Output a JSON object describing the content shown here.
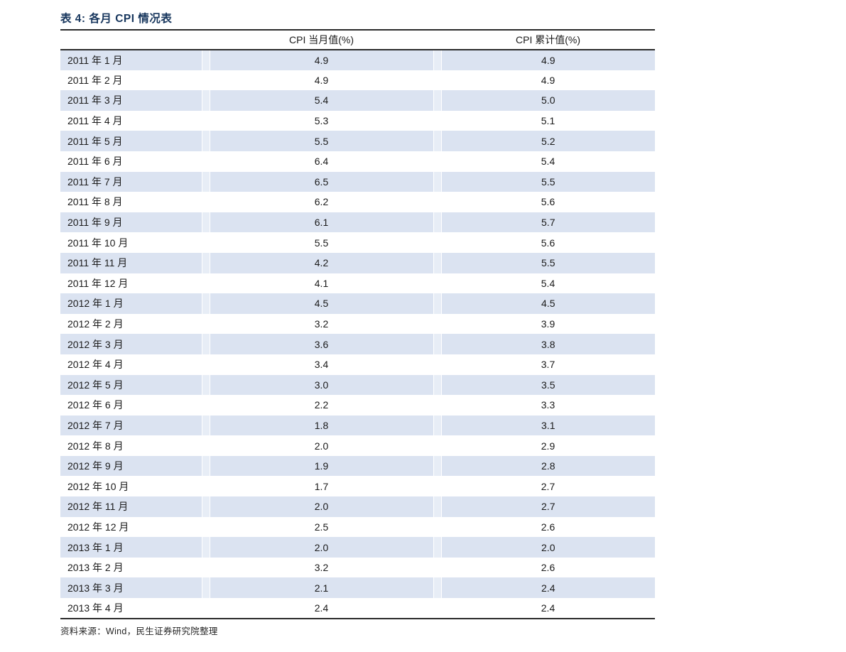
{
  "title": "表 4: 各月 CPI 情况表",
  "table": {
    "columns": {
      "month": "",
      "current": "CPI 当月值(%)",
      "cumulative": "CPI 累计值(%)"
    },
    "rows": [
      {
        "month": "2011 年 1 月",
        "current": "4.9",
        "cumulative": "4.9"
      },
      {
        "month": "2011 年 2 月",
        "current": "4.9",
        "cumulative": "4.9"
      },
      {
        "month": "2011 年 3 月",
        "current": "5.4",
        "cumulative": "5.0"
      },
      {
        "month": "2011 年 4 月",
        "current": "5.3",
        "cumulative": "5.1"
      },
      {
        "month": "2011 年 5 月",
        "current": "5.5",
        "cumulative": "5.2"
      },
      {
        "month": "2011 年 6 月",
        "current": "6.4",
        "cumulative": "5.4"
      },
      {
        "month": "2011 年 7 月",
        "current": "6.5",
        "cumulative": "5.5"
      },
      {
        "month": "2011 年 8 月",
        "current": "6.2",
        "cumulative": "5.6"
      },
      {
        "month": "2011 年 9 月",
        "current": "6.1",
        "cumulative": "5.7"
      },
      {
        "month": "2011 年 10 月",
        "current": "5.5",
        "cumulative": "5.6"
      },
      {
        "month": "2011 年 11 月",
        "current": "4.2",
        "cumulative": "5.5"
      },
      {
        "month": "2011 年 12 月",
        "current": "4.1",
        "cumulative": "5.4"
      },
      {
        "month": "2012 年 1 月",
        "current": "4.5",
        "cumulative": "4.5"
      },
      {
        "month": "2012 年 2 月",
        "current": "3.2",
        "cumulative": "3.9"
      },
      {
        "month": "2012 年 3 月",
        "current": "3.6",
        "cumulative": "3.8"
      },
      {
        "month": "2012 年 4 月",
        "current": "3.4",
        "cumulative": "3.7"
      },
      {
        "month": "2012 年 5 月",
        "current": "3.0",
        "cumulative": "3.5"
      },
      {
        "month": "2012 年 6 月",
        "current": "2.2",
        "cumulative": "3.3"
      },
      {
        "month": "2012 年 7 月",
        "current": "1.8",
        "cumulative": "3.1"
      },
      {
        "month": "2012 年 8 月",
        "current": "2.0",
        "cumulative": "2.9"
      },
      {
        "month": "2012 年 9 月",
        "current": "1.9",
        "cumulative": "2.8"
      },
      {
        "month": "2012 年 10 月",
        "current": "1.7",
        "cumulative": "2.7"
      },
      {
        "month": "2012 年 11 月",
        "current": "2.0",
        "cumulative": "2.7"
      },
      {
        "month": "2012 年 12 月",
        "current": "2.5",
        "cumulative": "2.6"
      },
      {
        "month": "2013 年 1 月",
        "current": "2.0",
        "cumulative": "2.0"
      },
      {
        "month": "2013 年 2 月",
        "current": "3.2",
        "cumulative": "2.6"
      },
      {
        "month": "2013 年 3 月",
        "current": "2.1",
        "cumulative": "2.4"
      },
      {
        "month": "2013 年 4 月",
        "current": "2.4",
        "cumulative": "2.4"
      }
    ]
  },
  "source": "资料来源：Wind，民生证券研究院整理",
  "colors": {
    "title_text": "#17365d",
    "row_stripe": "#dbe3f1",
    "stripe_gap": "#e7edf6",
    "rule_line": "#2b2b2b"
  }
}
